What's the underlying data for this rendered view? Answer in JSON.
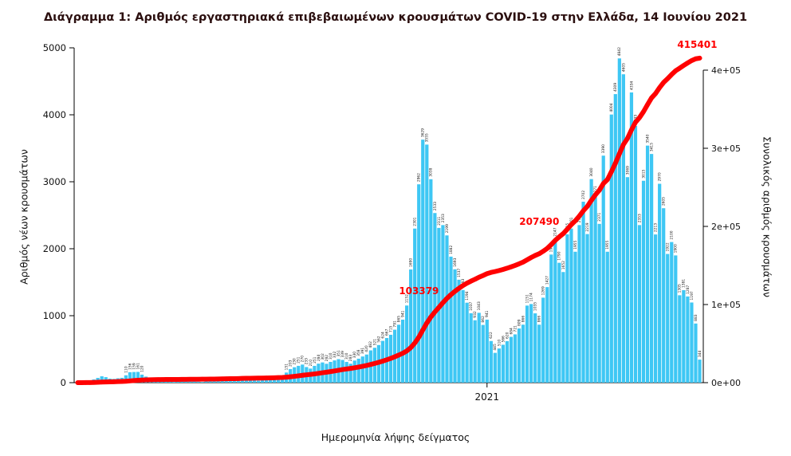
{
  "title": "Διάγραμμα 1: Αριθμός εργαστηριακά επιβεβαιωμένων κρουσμάτων COVID-19 στην Ελλάδα, 14 Ιουνίου 2021",
  "colors": {
    "bars": "#3EC7F4",
    "line": "#FF0000",
    "title": "#2b0f0f",
    "axis": "#000000",
    "bar_labels": "#1a1a1a"
  },
  "chart_data": {
    "type": "bar",
    "title": "Διάγραμμα 1: Αριθμός εργαστηριακά επιβεβαιωμένων κρουσμάτων COVID-19 στην Ελλάδα, 14 Ιουνίου 2021",
    "xlabel": "Ημερομηνία λήψης δείγματος",
    "ylabel_left": "Αριθμός νέων κρουσμάτων",
    "ylabel_right": "Συνολικός αριθμός κρουσμάτων",
    "ylim_left": [
      0,
      5000
    ],
    "ylim_right": [
      0,
      400000
    ],
    "left_ticks": [
      0,
      1000,
      2000,
      3000,
      4000,
      5000
    ],
    "right_ticks": [
      "0e+00",
      "1e+05",
      "2e+05",
      "3e+05",
      "4e+05"
    ],
    "right_tick_values": [
      0,
      100000,
      200000,
      300000,
      400000
    ],
    "x_tick": {
      "label": "2021",
      "index": 102
    },
    "grid": false,
    "approximation_note": "daily new confirmed cases Feb 2020 - 14 Jun 2021, ~3-day sampled estimates read from bar heights/labels",
    "series": [
      {
        "name": "Αριθμός νέων κρουσμάτων",
        "type": "bar",
        "values": [
          3,
          7,
          21,
          35,
          48,
          71,
          95,
          82,
          60,
          56,
          65,
          72,
          110,
          156,
          159,
          161,
          120,
          90,
          61,
          40,
          30,
          25,
          20,
          15,
          10,
          12,
          18,
          25,
          30,
          20,
          15,
          10,
          20,
          30,
          40,
          50,
          45,
          35,
          30,
          40,
          50,
          60,
          52,
          43,
          35,
          31,
          36,
          45,
          50,
          57,
          62,
          65,
          151,
          203,
          230,
          251,
          270,
          233,
          210,
          251,
          284,
          302,
          282,
          310,
          332,
          351,
          339,
          310,
          283,
          330,
          358,
          391,
          420,
          482,
          521,
          562,
          624,
          667,
          715,
          791,
          865,
          941,
          1152,
          1690,
          2301,
          2962,
          3629,
          3555,
          3038,
          2533,
          2311,
          2353,
          2199,
          1882,
          1693,
          1537,
          1383,
          1194,
          1037,
          932,
          1043,
          862,
          941,
          622,
          445,
          510,
          566,
          620,
          684,
          721,
          809,
          866,
          1151,
          1174,
          1035,
          866,
          1269,
          1427,
          1913,
          2147,
          1790,
          1652,
          2215,
          2301,
          1955,
          2353,
          2702,
          2219,
          3040,
          2771,
          2371,
          3390,
          1955,
          4004,
          4309,
          4842,
          4605,
          3069,
          4334,
          3833,
          2353,
          3015,
          3540,
          3415,
          2213,
          2970,
          2605,
          1922,
          2100,
          1900,
          1305,
          1381,
          1287,
          1197,
          883,
          344
        ]
      },
      {
        "name": "Συνολικός αριθμός κρουσμάτων",
        "type": "line",
        "final_value": 415401,
        "computed": "cumulative sum of daily values, scaled so the last point equals final_value"
      }
    ],
    "annotations": [
      {
        "text": "103379",
        "index": 91
      },
      {
        "text": "207490",
        "index": 121
      },
      {
        "text": "415401",
        "index": 155
      }
    ]
  }
}
